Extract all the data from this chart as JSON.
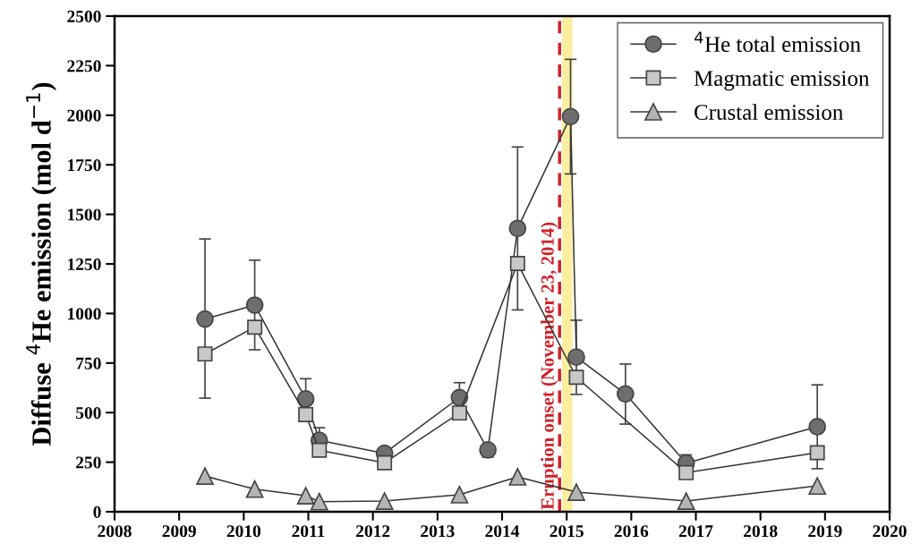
{
  "chart_data": {
    "type": "line",
    "ylabel": "Diffuse $^{4}$He emission (mol d$^{−1}$)",
    "xlim": [
      2008,
      2020
    ],
    "xticks": [
      2008,
      2009,
      2010,
      2011,
      2012,
      2013,
      2014,
      2015,
      2016,
      2017,
      2018,
      2019,
      2020
    ],
    "ylim": [
      0,
      2500
    ],
    "yticks": [
      0,
      250,
      500,
      750,
      1000,
      1250,
      1500,
      1750,
      2000,
      2250,
      2500
    ],
    "grid": false,
    "legend": "top right",
    "line_style": "solid",
    "series": [
      {
        "name": "$^{4}$He total emission",
        "color": "#6e6e6e",
        "marker": "circle",
        "x": [
          2009.4,
          2010.17,
          2010.96,
          2011.17,
          2012.18,
          2013.34,
          2013.78,
          2014.24,
          2015.06,
          2015.15,
          2015.91,
          2016.85,
          2018.88
        ],
        "values": [
          972,
          1042,
          569,
          360,
          295,
          576,
          312,
          1429,
          1993,
          780,
          594,
          245,
          429
        ],
        "errors": [
          [
            573,
            1376
          ],
          [
            817,
            1269
          ],
          [
            569,
            671
          ],
          [
            360,
            424
          ],
          null,
          [
            576,
            651
          ],
          [
            275,
            312
          ],
          [
            1018,
            1840
          ],
          [
            1704,
            2282
          ],
          [
            592,
            966
          ],
          [
            442,
            745
          ],
          [
            245,
            287
          ],
          [
            217,
            640
          ]
        ]
      },
      {
        "name": "Magmatic emission",
        "color": "#c8c8c8",
        "marker": "square",
        "x": [
          2009.4,
          2010.17,
          2010.96,
          2011.17,
          2012.18,
          2013.34,
          2014.24,
          2015.15,
          2016.85,
          2018.88
        ],
        "values": [
          796,
          931,
          490,
          310,
          247,
          498,
          1252,
          678,
          197,
          298
        ]
      },
      {
        "name": "Crustal emission",
        "color": "#b4b4b4",
        "marker": "triangle",
        "x": [
          2009.4,
          2010.17,
          2010.96,
          2011.17,
          2012.18,
          2013.34,
          2014.24,
          2015.15,
          2016.85,
          2018.88
        ],
        "values": [
          180,
          114,
          81,
          51,
          54,
          86,
          176,
          99,
          54,
          130
        ]
      }
    ],
    "ref_lines": [
      {
        "axis": "x",
        "value": 2014.89,
        "label": "Eruption onset (November 23, 2014)",
        "color": "#d0202a",
        "line_style": "dashed"
      }
    ],
    "bands": [
      {
        "axis": "x",
        "from": 2014.93,
        "to": 2015.09,
        "color": "#fbeea0"
      }
    ]
  }
}
